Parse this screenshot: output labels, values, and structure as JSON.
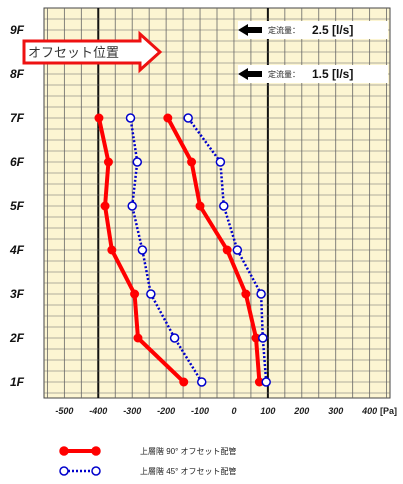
{
  "chart_data": {
    "type": "line",
    "y_categories": [
      "1F",
      "2F",
      "3F",
      "4F",
      "5F",
      "6F",
      "7F",
      "8F",
      "9F"
    ],
    "x_ticks": [
      -500,
      -400,
      -300,
      -200,
      -100,
      0,
      100,
      200,
      300,
      400
    ],
    "x_unit": "[Pa]",
    "xlim": [
      -560,
      460
    ],
    "grid": true,
    "flow_groups": [
      {
        "flow_label": "定流量：",
        "flow_value": "2.5 [l/s]",
        "floor": "9F",
        "series": [
          {
            "legend_index": 0,
            "x": [
              -148,
              -283,
              -293,
              -360,
              -380,
              -370,
              -398
            ],
            "y": [
              "1F",
              "2F",
              "3F",
              "4F",
              "5F",
              "6F",
              "7F"
            ]
          },
          {
            "legend_index": 1,
            "x": [
              -95,
              -175,
              -245,
              -270,
              -300,
              -285,
              -305
            ],
            "y": [
              "1F",
              "2F",
              "3F",
              "4F",
              "5F",
              "6F",
              "7F"
            ]
          }
        ]
      },
      {
        "flow_label": "定流量：",
        "flow_value": "1.5 [l/s]",
        "floor": "8F",
        "series": [
          {
            "legend_index": 0,
            "x": [
              75,
              65,
              35,
              -20,
              -100,
              -125,
              -195
            ],
            "y": [
              "1F",
              "2F",
              "3F",
              "4F",
              "5F",
              "6F",
              "7F"
            ]
          },
          {
            "legend_index": 1,
            "x": [
              95,
              85,
              80,
              10,
              -30,
              -40,
              -135
            ],
            "y": [
              "1F",
              "2F",
              "3F",
              "4F",
              "5F",
              "6F",
              "7F"
            ]
          }
        ]
      }
    ],
    "legend": [
      {
        "label": "上層階 90° オフセット配管",
        "color": "#ff0000",
        "style": "solid-filled-dot"
      },
      {
        "label": "上層階 45° オフセット配管",
        "color": "#0000cc",
        "style": "dotted-open-circle"
      }
    ],
    "annotation": {
      "label": "オフセット位置",
      "between_floors": [
        "8F",
        "9F"
      ]
    },
    "colors": {
      "background": "#fcf5d2",
      "grid": "#666666",
      "red": "#ff0000",
      "blue": "#0000cc"
    }
  }
}
